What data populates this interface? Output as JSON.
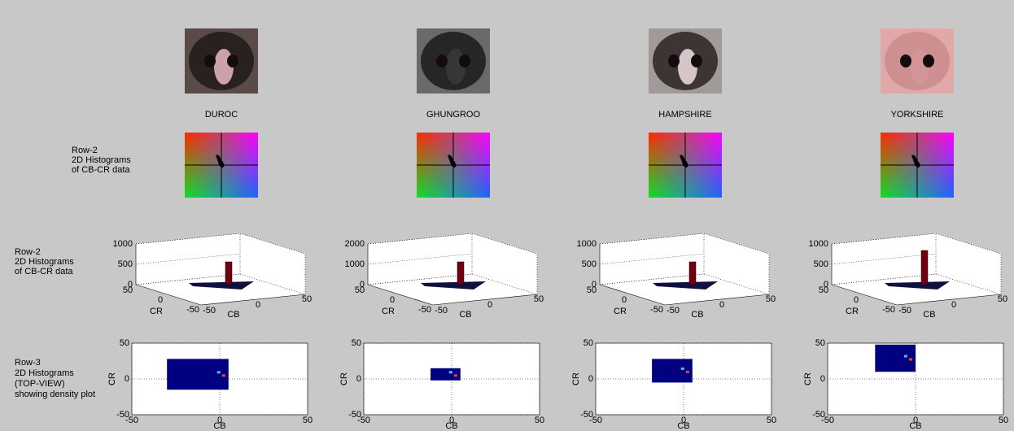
{
  "breeds": [
    {
      "name": "DUROC",
      "zticks": [
        0,
        500,
        1000
      ],
      "top_view_extent": {
        "cb": [
          -30,
          5
        ],
        "cr": [
          -15,
          28
        ]
      }
    },
    {
      "name": "GHUNGROO",
      "zticks": [
        0,
        1000,
        2000
      ],
      "top_view_extent": {
        "cb": [
          -12,
          5
        ],
        "cr": [
          -2,
          15
        ]
      }
    },
    {
      "name": "HAMPSHIRE",
      "zticks": [
        0,
        500,
        1000
      ],
      "top_view_extent": {
        "cb": [
          -18,
          5
        ],
        "cr": [
          -5,
          28
        ]
      }
    },
    {
      "name": "YORKSHIRE",
      "zticks": [
        0,
        500,
        1000
      ],
      "top_view_extent": {
        "cb": [
          -23,
          0
        ],
        "cr": [
          10,
          48
        ]
      }
    }
  ],
  "row_labels": {
    "color_map": [
      "Row-2",
      "2D Histograms",
      "of CB-CR data"
    ],
    "histogram_3d": [
      "Row-2",
      "2D Histograms",
      "of CB-CR data"
    ],
    "top_view": [
      "Row-3",
      "2D Histograms",
      "(TOP-VIEW)",
      "showing density plot"
    ]
  },
  "axes_3d": {
    "cb_label": "CB",
    "cr_label": "CR",
    "cb_ticks": [
      -50,
      0,
      50
    ],
    "cr_ticks": [
      50,
      0,
      -50
    ]
  },
  "top_view": {
    "x_label": "CB",
    "y_label": "CR",
    "xlim": [
      -50,
      50
    ],
    "ylim": [
      -50,
      50
    ],
    "xticks": [
      -50,
      0,
      50
    ],
    "yticks": [
      -50,
      0,
      50
    ]
  }
}
